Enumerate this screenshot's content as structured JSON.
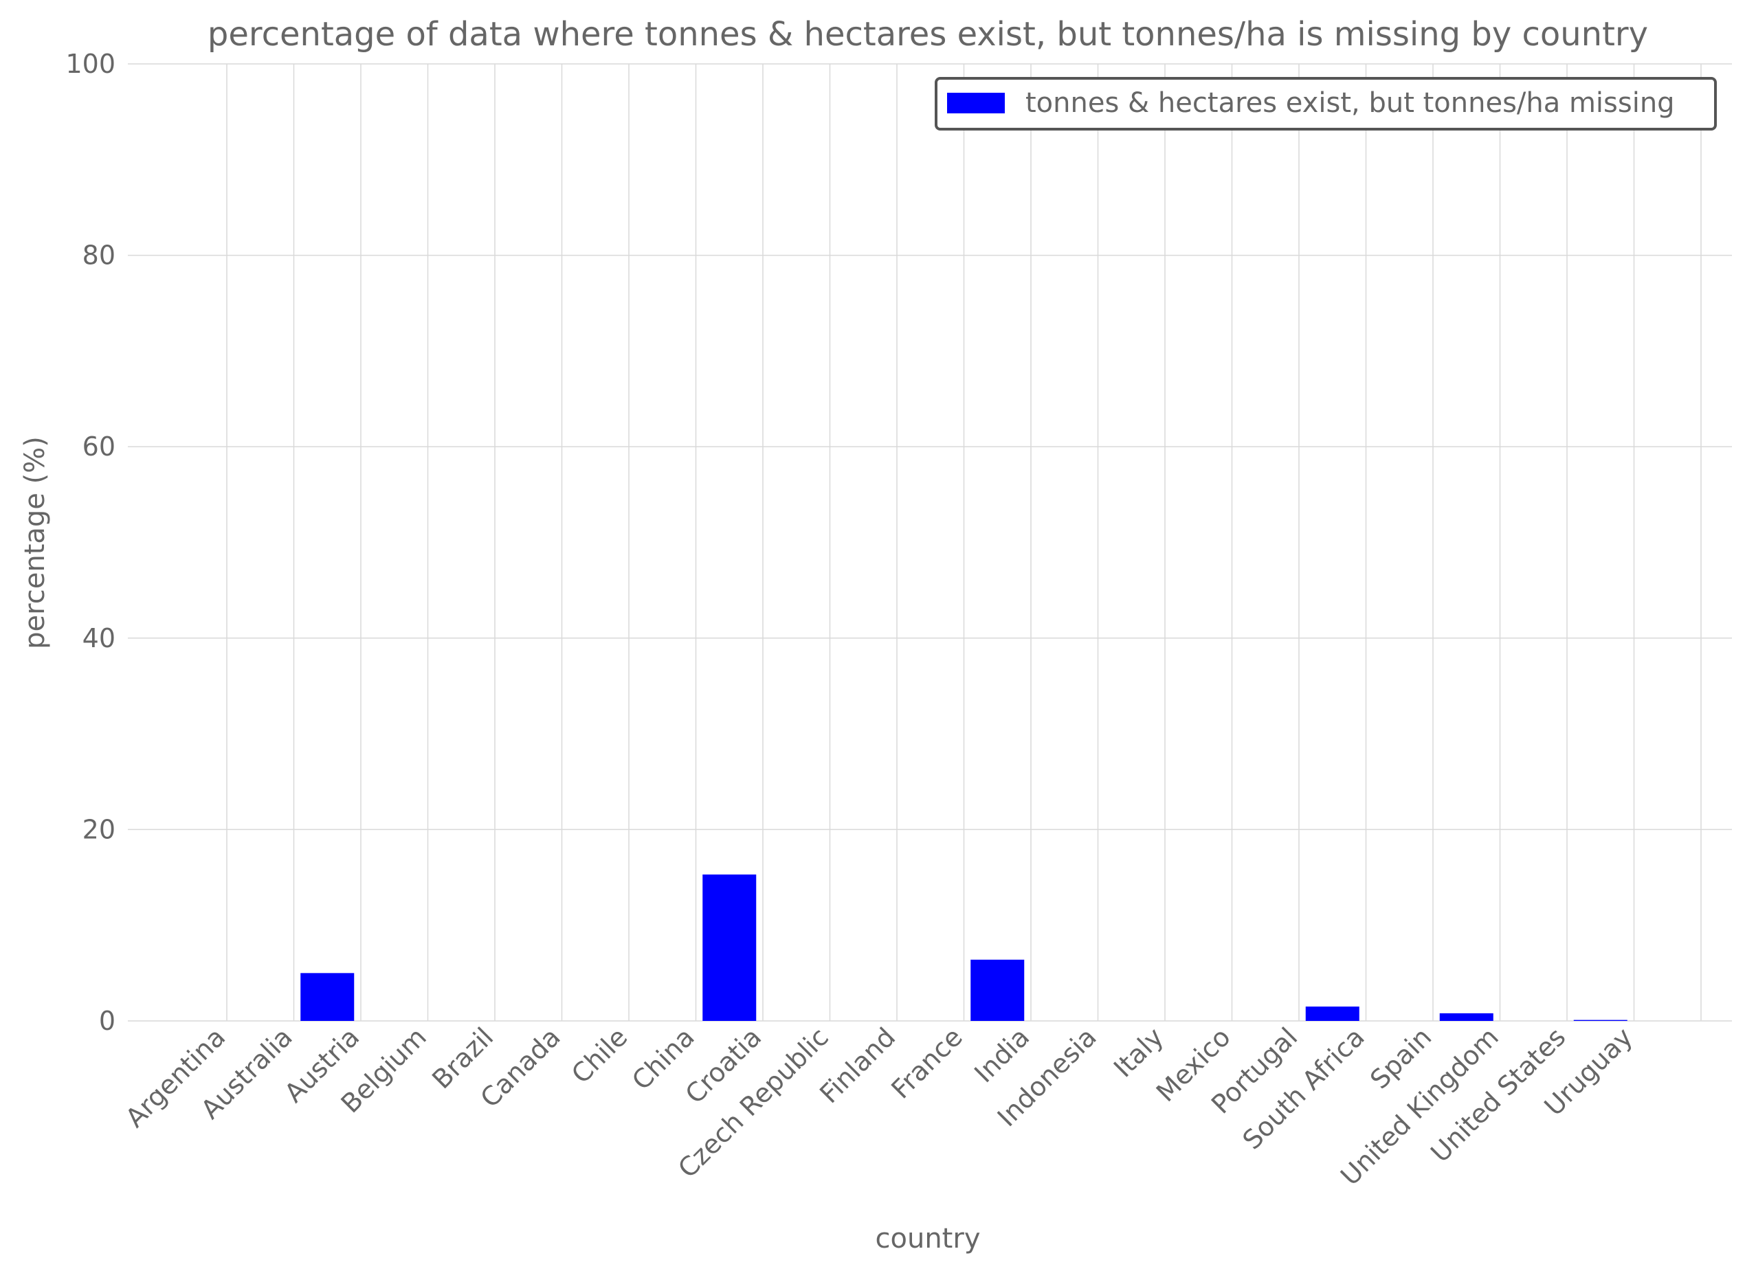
{
  "chart_data": {
    "type": "bar",
    "title": "percentage of data where tonnes & hectares exist, but tonnes/ha is missing by country",
    "xlabel": "country",
    "ylabel": "percentage (%)",
    "ylim": [
      0,
      100
    ],
    "yticks": [
      0,
      20,
      40,
      60,
      80,
      100
    ],
    "grid": true,
    "legend_position": "top-right",
    "categories": [
      "Argentina",
      "Australia",
      "Austria",
      "Belgium",
      "Brazil",
      "Canada",
      "Chile",
      "China",
      "Croatia",
      "Czech Republic",
      "Finland",
      "France",
      "India",
      "Indonesia",
      "Italy",
      "Mexico",
      "Portugal",
      "South Africa",
      "Spain",
      "United Kingdom",
      "United States",
      "Uruguay"
    ],
    "series": [
      {
        "name": "tonnes & hectares exist, but tonnes/ha missing",
        "color": "#0000ff",
        "values": [
          0,
          5.0,
          0,
          0,
          0,
          0,
          0,
          15.3,
          0,
          0,
          0,
          6.4,
          0,
          0,
          0,
          0,
          1.5,
          0,
          0.8,
          0,
          0.1,
          0
        ]
      }
    ]
  }
}
